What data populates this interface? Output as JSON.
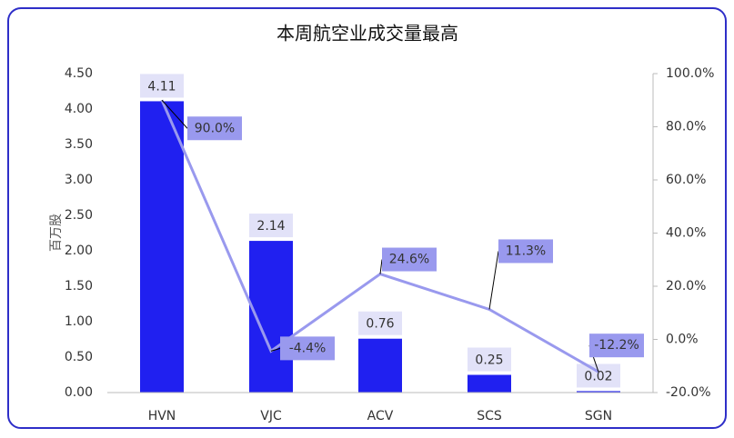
{
  "chart_data": {
    "type": "bar",
    "title": "本周航空业成交量最高",
    "ylabel": "百万股",
    "categories": [
      "HVN",
      "VJC",
      "ACV",
      "SCS",
      "SGN"
    ],
    "series": [
      {
        "type": "bar",
        "color": "#2020f0",
        "values": [
          4.11,
          2.14,
          0.76,
          0.25,
          0.02
        ]
      },
      {
        "type": "line",
        "axis": "y2",
        "color": "#9999ee",
        "values": [
          90.0,
          -4.4,
          24.6,
          11.3,
          -12.2
        ],
        "value_labels": [
          "90.0%",
          "-4.4%",
          "24.6%",
          "11.3%",
          "-12.2%"
        ]
      }
    ],
    "ylim": [
      0,
      4.5
    ],
    "yticks": [
      {
        "value": 0,
        "label": "0.00"
      },
      {
        "value": 0.5,
        "label": "0.50"
      },
      {
        "value": 1,
        "label": "1.00"
      },
      {
        "value": 1.5,
        "label": "1.50"
      },
      {
        "value": 2,
        "label": "2.00"
      },
      {
        "value": 2.5,
        "label": "2.50"
      },
      {
        "value": 3,
        "label": "3.00"
      },
      {
        "value": 3.5,
        "label": "3.50"
      },
      {
        "value": 4,
        "label": "4.00"
      },
      {
        "value": 4.5,
        "label": "4.50"
      }
    ],
    "y2lim": [
      -20,
      100
    ],
    "y2ticks": [
      {
        "value": -20,
        "label": "-20.0%"
      },
      {
        "value": 0,
        "label": "0.0%"
      },
      {
        "value": 20,
        "label": "20.0%"
      },
      {
        "value": 40,
        "label": "40.0%"
      },
      {
        "value": 60,
        "label": "60.0%"
      },
      {
        "value": 80,
        "label": "80.0%"
      },
      {
        "value": 100,
        "label": "100.0%"
      }
    ],
    "grid": false
  }
}
